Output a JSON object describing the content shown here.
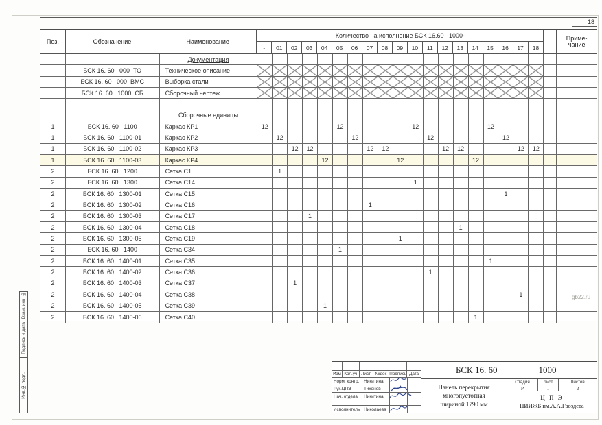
{
  "page": {
    "sheet_number": "18",
    "watermark": "gb22.ru"
  },
  "spec_table": {
    "headers": {
      "pos": "Поз.",
      "designation": "Обозначение",
      "name": "Наименование",
      "quantity_group": "Количество на исполнение БСК 16.60   1000-",
      "note_line1": "Приме-",
      "note_line2": "чание",
      "qty_columns": [
        "-",
        "01",
        "02",
        "03",
        "04",
        "05",
        "06",
        "07",
        "08",
        "09",
        "10",
        "11",
        "12",
        "13",
        "14",
        "15",
        "16",
        "17",
        "18"
      ]
    },
    "rows": [
      {
        "type": "section",
        "name": "Документация",
        "underline": true
      },
      {
        "type": "doc",
        "designation": "БСК 16. 60   000  ТО",
        "name": "Техническое описание"
      },
      {
        "type": "doc",
        "designation": "БСК 16. 60   000  ВМС",
        "name": "Выборка стали"
      },
      {
        "type": "doc",
        "designation": "БСК 16. 60   1000  СБ",
        "name": "Сборочный чертеж"
      },
      {
        "type": "empty"
      },
      {
        "type": "section",
        "name": "Сборочные единицы"
      },
      {
        "type": "item",
        "pos": "1",
        "designation": "БСК 16. 60   1100",
        "name": "Каркас КР1",
        "qty": {
          "0": "12",
          "5": "12",
          "10": "12",
          "15": "12"
        }
      },
      {
        "type": "item",
        "pos": "1",
        "designation": "БСК 16. 60   1100-01",
        "name": "Каркас КР2",
        "qty": {
          "1": "12",
          "6": "12",
          "11": "12",
          "16": "12"
        }
      },
      {
        "type": "item",
        "pos": "1",
        "designation": "БСК 16. 60   1100-02",
        "name": "Каркас КР3",
        "qty": {
          "2": "12",
          "3": "12",
          "7": "12",
          "8": "12",
          "12": "12",
          "13": "12",
          "17": "12",
          "18": "12"
        }
      },
      {
        "type": "item",
        "pos": "1",
        "designation": "БСК 16. 60   1100-03",
        "name": "Каркас КР4",
        "qty": {
          "4": "12",
          "9": "12",
          "14": "12"
        },
        "tint": true
      },
      {
        "type": "item",
        "pos": "2",
        "designation": "БСК 16. 60   1200",
        "name": "Сетка С1",
        "qty": {
          "1": "1"
        }
      },
      {
        "type": "item",
        "pos": "2",
        "designation": "БСК 16. 60   1300",
        "name": "Сетка С14",
        "qty": {
          "10": "1"
        }
      },
      {
        "type": "item",
        "pos": "2",
        "designation": "БСК 16. 60   1300-01",
        "name": "Сетка С15",
        "qty": {
          "16": "1"
        }
      },
      {
        "type": "item",
        "pos": "2",
        "designation": "БСК 16. 60   1300-02",
        "name": "Сетка С16",
        "qty": {
          "7": "1"
        }
      },
      {
        "type": "item",
        "pos": "2",
        "designation": "БСК 16. 60   1300-03",
        "name": "Сетка С17",
        "qty": {
          "3": "1"
        }
      },
      {
        "type": "item",
        "pos": "2",
        "designation": "БСК 16. 60   1300-04",
        "name": "Сетка С18",
        "qty": {
          "13": "1"
        }
      },
      {
        "type": "item",
        "pos": "2",
        "designation": "БСК 16. 60   1300-05",
        "name": "Сетка С19",
        "qty": {
          "9": "1"
        }
      },
      {
        "type": "item",
        "pos": "2",
        "designation": "БСК 16. 60   1400",
        "name": "Сетка С34",
        "qty": {
          "5": "1"
        }
      },
      {
        "type": "item",
        "pos": "2",
        "designation": "БСК 16. 60   1400-01",
        "name": "Сетка С35",
        "qty": {
          "15": "1"
        }
      },
      {
        "type": "item",
        "pos": "2",
        "designation": "БСК 16. 60   1400-02",
        "name": "Сетка С36",
        "qty": {
          "11": "1"
        }
      },
      {
        "type": "item",
        "pos": "2",
        "designation": "БСК 16. 60   1400-03",
        "name": "Сетка С37",
        "qty": {
          "2": "1"
        }
      },
      {
        "type": "item",
        "pos": "2",
        "designation": "БСК 16. 60   1400-04",
        "name": "Сетка С38",
        "qty": {
          "17": "1"
        }
      },
      {
        "type": "item",
        "pos": "2",
        "designation": "БСК 16. 60   1400-05",
        "name": "Сетка С39",
        "qty": {
          "4": "1"
        }
      },
      {
        "type": "item",
        "pos": "2",
        "designation": "БСК 16. 60   1400-06",
        "name": "Сетка С40",
        "qty": {
          "14": "1"
        }
      }
    ]
  },
  "side_labels": {
    "box1": "Взам. инв. №",
    "box2": "Подпись и дата",
    "box3": "Инв.№ подл."
  },
  "title_block": {
    "doc_code": "БСК 16. 60",
    "doc_code_suffix": "1000",
    "header_cols": [
      "Изм",
      "Кол.уч",
      "Лист",
      "№док",
      "Подпись",
      "Дата"
    ],
    "people": [
      {
        "role": "Норм. контр.",
        "name": "Никитина"
      },
      {
        "role": "Рук.ЦПЭ",
        "name": "Тихонов"
      },
      {
        "role": "Нач. отдела",
        "name": "Никитина"
      },
      {
        "role": "",
        "name": ""
      },
      {
        "role": "Исполнитель",
        "name": "Николаева"
      }
    ],
    "title_lines": [
      "Панель перекрытия",
      "многопустотная",
      "шириной  1790 мм"
    ],
    "stage_header": [
      "Стадия",
      "Лист",
      "Листов"
    ],
    "stage_values": [
      "Р",
      "1",
      "2"
    ],
    "org_line1": "Ц П Э",
    "org_line2": "НИИЖБ им.А.А.Гвоздева"
  }
}
